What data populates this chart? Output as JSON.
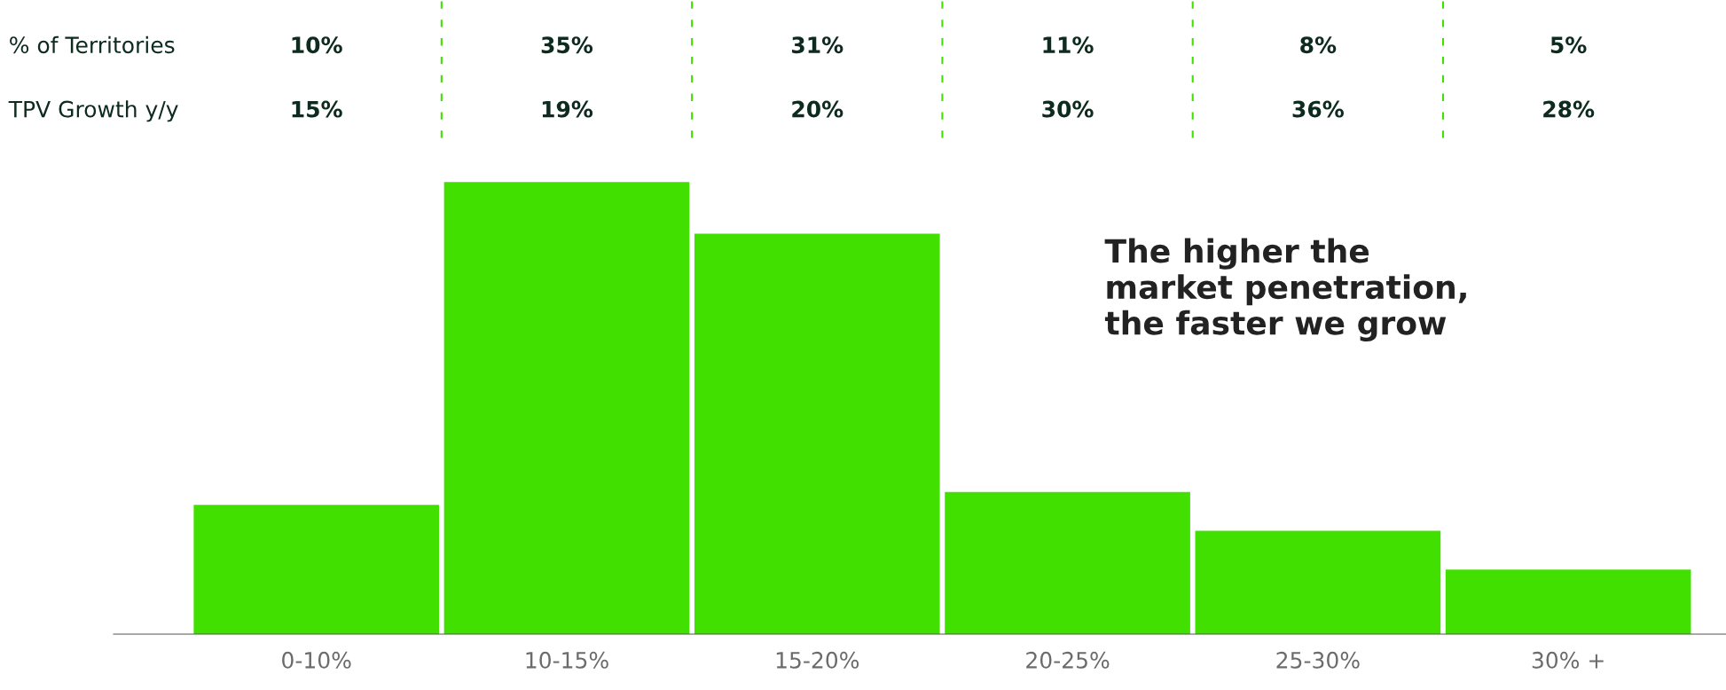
{
  "chart_data": {
    "type": "bar",
    "categories": [
      "0-10%",
      "10-15%",
      "15-20%",
      "20-25%",
      "25-30%",
      "30% +"
    ],
    "series": [
      {
        "name": "% of Territories",
        "color": "#41e000",
        "values": [
          10,
          35,
          31,
          11,
          8,
          5
        ],
        "value_labels": [
          "10%",
          "35%",
          "31%",
          "11%",
          "8%",
          "5%"
        ]
      }
    ],
    "annotations": [
      "TPV Growth y/y",
      "15%",
      "19%",
      "20%",
      "30%",
      "36%",
      "28%",
      "The higher the\nmarket penetration,\nthe faster we grow"
    ],
    "grid": false,
    "legend": false
  }
}
